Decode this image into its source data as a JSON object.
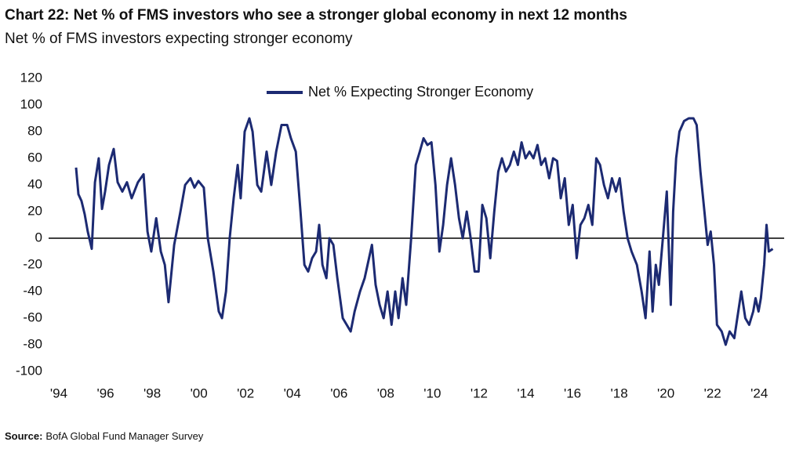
{
  "chart_data": {
    "type": "line",
    "title": "Chart 22: Net % of FMS investors who see a stronger global economy in next 12 months",
    "subtitle": "Net % of FMS investors expecting stronger economy",
    "source_label": "Source:",
    "source": "BofA Global Fund Manager Survey",
    "legend": "top",
    "grid": false,
    "xlim": [
      1994,
      2025
    ],
    "ylim": [
      -100,
      120
    ],
    "yticks": [
      -100,
      -80,
      -60,
      -40,
      -20,
      0,
      20,
      40,
      60,
      80,
      100,
      120
    ],
    "xticks": [
      {
        "value": 1994,
        "label": "'94"
      },
      {
        "value": 1996,
        "label": "'96"
      },
      {
        "value": 1998,
        "label": "'98"
      },
      {
        "value": 2000,
        "label": "'00"
      },
      {
        "value": 2002,
        "label": "'02"
      },
      {
        "value": 2004,
        "label": "'04"
      },
      {
        "value": 2006,
        "label": "'06"
      },
      {
        "value": 2008,
        "label": "'08"
      },
      {
        "value": 2010,
        "label": "'10"
      },
      {
        "value": 2012,
        "label": "'12"
      },
      {
        "value": 2014,
        "label": "'14"
      },
      {
        "value": 2016,
        "label": "'16"
      },
      {
        "value": 2018,
        "label": "'18"
      },
      {
        "value": 2020,
        "label": "'20"
      },
      {
        "value": 2022,
        "label": "'22"
      },
      {
        "value": 2024,
        "label": "'24"
      }
    ],
    "x": [
      1994.74,
      1994.84,
      1994.97,
      1995.11,
      1995.24,
      1995.41,
      1995.55,
      1995.71,
      1995.85,
      1995.98,
      1996.15,
      1996.35,
      1996.52,
      1996.72,
      1996.92,
      1997.12,
      1997.39,
      1997.63,
      1997.8,
      1997.96,
      1998.17,
      1998.37,
      1998.54,
      1998.7,
      1998.94,
      1999.21,
      1999.41,
      1999.64,
      1999.81,
      1999.98,
      2000.21,
      2000.38,
      2000.62,
      2000.85,
      2000.99,
      2001.16,
      2001.32,
      2001.49,
      2001.66,
      2001.79,
      2001.96,
      2002.16,
      2002.3,
      2002.5,
      2002.67,
      2002.9,
      2003.1,
      2003.31,
      2003.54,
      2003.78,
      2003.94,
      2004.15,
      2004.35,
      2004.52,
      2004.68,
      2004.85,
      2005.02,
      2005.15,
      2005.29,
      2005.46,
      2005.59,
      2005.76,
      2005.93,
      2006.16,
      2006.5,
      2006.67,
      2006.9,
      2007.1,
      2007.41,
      2007.57,
      2007.74,
      2007.91,
      2008.08,
      2008.25,
      2008.41,
      2008.55,
      2008.72,
      2008.88,
      2009.09,
      2009.29,
      2009.46,
      2009.62,
      2009.79,
      2009.96,
      2010.13,
      2010.3,
      2010.46,
      2010.63,
      2010.8,
      2010.97,
      2011.14,
      2011.3,
      2011.47,
      2011.64,
      2011.81,
      2011.98,
      2012.14,
      2012.31,
      2012.48,
      2012.65,
      2012.82,
      2012.98,
      2013.15,
      2013.32,
      2013.49,
      2013.66,
      2013.82,
      2013.99,
      2014.16,
      2014.33,
      2014.5,
      2014.66,
      2014.83,
      2015.0,
      2015.17,
      2015.34,
      2015.5,
      2015.67,
      2015.84,
      2016.01,
      2016.18,
      2016.34,
      2016.51,
      2016.68,
      2016.85,
      2017.02,
      2017.18,
      2017.35,
      2017.52,
      2017.69,
      2017.86,
      2018.02,
      2018.19,
      2018.36,
      2018.53,
      2018.76,
      2018.96,
      2019.13,
      2019.3,
      2019.43,
      2019.57,
      2019.7,
      2019.87,
      2020.04,
      2020.21,
      2020.31,
      2020.44,
      2020.58,
      2020.78,
      2020.98,
      2021.18,
      2021.32,
      2021.48,
      2021.65,
      2021.79,
      2021.92,
      2022.06,
      2022.19,
      2022.39,
      2022.56,
      2022.73,
      2022.93,
      2023.06,
      2023.23,
      2023.4,
      2023.57,
      2023.74,
      2023.84,
      2023.97,
      2024.07,
      2024.21,
      2024.31,
      2024.41,
      2024.58
    ],
    "series": [
      {
        "name": "Net % Expecting Stronger Economy",
        "color": "#1c2a72",
        "values": [
          53,
          33,
          28,
          18,
          5,
          -8,
          42,
          60,
          22,
          35,
          55,
          67,
          42,
          35,
          42,
          30,
          42,
          48,
          5,
          -10,
          15,
          -10,
          -20,
          -48,
          -5,
          20,
          40,
          45,
          38,
          43,
          38,
          0,
          -25,
          -55,
          -60,
          -40,
          0,
          30,
          55,
          30,
          80,
          90,
          80,
          40,
          35,
          65,
          40,
          65,
          85,
          85,
          75,
          65,
          20,
          -20,
          -25,
          -15,
          -10,
          10,
          -20,
          -30,
          0,
          -5,
          -30,
          -60,
          -70,
          -55,
          -40,
          -30,
          -5,
          -35,
          -50,
          -60,
          -40,
          -65,
          -40,
          -60,
          -30,
          -50,
          0,
          55,
          65,
          75,
          70,
          72,
          40,
          -10,
          10,
          40,
          60,
          40,
          15,
          0,
          20,
          0,
          -25,
          -25,
          25,
          15,
          -15,
          20,
          50,
          60,
          50,
          55,
          65,
          55,
          72,
          60,
          65,
          60,
          70,
          55,
          60,
          45,
          60,
          58,
          30,
          45,
          10,
          25,
          -15,
          10,
          15,
          25,
          10,
          60,
          55,
          40,
          30,
          45,
          35,
          45,
          20,
          0,
          -10,
          -20,
          -40,
          -60,
          -10,
          -55,
          -20,
          -35,
          0,
          35,
          -50,
          20,
          60,
          80,
          88,
          90,
          90,
          85,
          50,
          20,
          -5,
          5,
          -20,
          -65,
          -70,
          -80,
          -70,
          -75,
          -60,
          -40,
          -60,
          -65,
          -55,
          -45,
          -55,
          -45,
          -20,
          10,
          -10,
          -8
        ]
      }
    ]
  }
}
